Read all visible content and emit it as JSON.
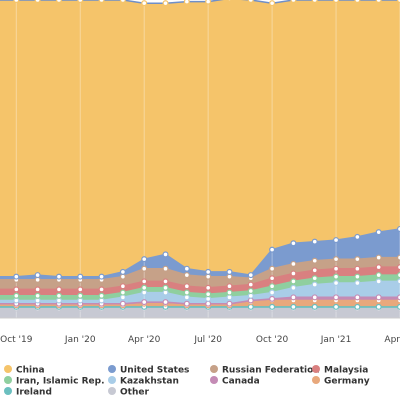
{
  "chart_data": {
    "type": "area",
    "stacked": true,
    "grid": true,
    "legend_position": "bottom",
    "x_tick_labels": [
      "Oct '19",
      "Jan '20",
      "Apr '20",
      "Jul '20",
      "Oct '20",
      "Jan '21",
      "Apr"
    ],
    "periods": [
      "Sep '19",
      "Oct '19",
      "Nov '19",
      "Dec '19",
      "Jan '20",
      "Feb '20",
      "Mar '20",
      "Apr '20",
      "May '20",
      "Jun '20",
      "Jul '20",
      "Aug '20",
      "Sep '20",
      "Oct '20",
      "Nov '20",
      "Dec '20",
      "Jan '21",
      "Feb '21",
      "Mar '21",
      "Apr '21"
    ],
    "series": [
      {
        "name": "Other",
        "color": "#c7c9d3",
        "values": [
          3.0,
          3.0,
          3.0,
          3.0,
          3.0,
          3.0,
          3.0,
          3.0,
          3.0,
          3.0,
          3.0,
          3.0,
          3.0,
          3.0,
          3.0,
          3.0,
          3.0,
          3.0,
          3.0,
          3.0
        ]
      },
      {
        "name": "Ireland",
        "color": "#6bbfbf",
        "values": [
          0.5,
          0.5,
          0.5,
          0.5,
          0.5,
          0.5,
          0.5,
          0.5,
          0.5,
          0.5,
          0.5,
          0.5,
          0.5,
          0.5,
          0.5,
          0.5,
          0.5,
          0.5,
          0.5,
          0.5
        ]
      },
      {
        "name": "Germany",
        "color": "#e8a87c",
        "values": [
          0.5,
          0.5,
          0.5,
          0.5,
          0.5,
          0.5,
          0.5,
          1.0,
          1.0,
          0.5,
          0.5,
          0.5,
          1.5,
          2.0,
          2.0,
          2.0,
          2.0,
          2.0,
          2.0,
          2.0
        ]
      },
      {
        "name": "Canada",
        "color": "#c48bb5",
        "values": [
          0.5,
          0.5,
          0.5,
          0.5,
          0.5,
          0.5,
          0.5,
          0.5,
          0.5,
          0.5,
          0.5,
          0.5,
          0.5,
          0.5,
          1.0,
          1.0,
          1.0,
          1.0,
          1.0,
          1.0
        ]
      },
      {
        "name": "Kazakhstan",
        "color": "#a9cde8",
        "values": [
          1.0,
          1.0,
          1.0,
          1.0,
          1.0,
          1.0,
          2.0,
          3.0,
          3.0,
          2.0,
          1.5,
          2.0,
          1.5,
          2.0,
          3.0,
          4.0,
          4.5,
          4.5,
          5.0,
          5.0
        ]
      },
      {
        "name": "Iran, Islamic Rep.",
        "color": "#8fcf9f",
        "values": [
          1.5,
          1.5,
          1.5,
          1.5,
          1.5,
          1.5,
          1.5,
          1.5,
          1.5,
          1.5,
          1.5,
          1.5,
          1.5,
          2.0,
          2.0,
          2.0,
          2.0,
          2.0,
          2.0,
          2.0
        ]
      },
      {
        "name": "Malaysia",
        "color": "#d98080",
        "values": [
          2.0,
          2.0,
          2.0,
          2.0,
          2.0,
          2.0,
          2.0,
          2.0,
          2.0,
          2.0,
          2.0,
          2.0,
          2.0,
          2.5,
          2.5,
          2.5,
          2.5,
          2.5,
          2.5,
          2.5
        ]
      },
      {
        "name": "Russian Federation",
        "color": "#c6a188",
        "values": [
          3.0,
          3.0,
          3.0,
          3.0,
          3.0,
          3.0,
          3.0,
          4.0,
          4.0,
          3.5,
          3.5,
          3.0,
          2.0,
          3.0,
          3.0,
          3.0,
          3.0,
          3.0,
          3.0,
          3.0
        ]
      },
      {
        "name": "United States",
        "color": "#7b9bcf",
        "values": [
          1.0,
          1.0,
          1.5,
          1.0,
          1.0,
          1.0,
          1.5,
          3.0,
          4.5,
          2.0,
          1.5,
          1.5,
          1.0,
          6.0,
          6.5,
          6.0,
          6.0,
          7.0,
          8.0,
          9.0
        ]
      },
      {
        "name": "China",
        "color": "#f5c46a",
        "values": [
          87.0,
          87.0,
          86.5,
          87.0,
          87.0,
          87.0,
          85.5,
          80.5,
          79.0,
          84.0,
          85.0,
          86.0,
          86.5,
          77.5,
          76.5,
          76.0,
          75.5,
          74.5,
          73.0,
          72.0
        ]
      }
    ],
    "legend_order": [
      "China",
      "United States",
      "Russian Federation",
      "Malaysia",
      "Iran, Islamic Rep.",
      "Kazakhstan",
      "Canada",
      "Germany",
      "Ireland",
      "Other"
    ],
    "ylim": [
      0,
      100
    ]
  }
}
